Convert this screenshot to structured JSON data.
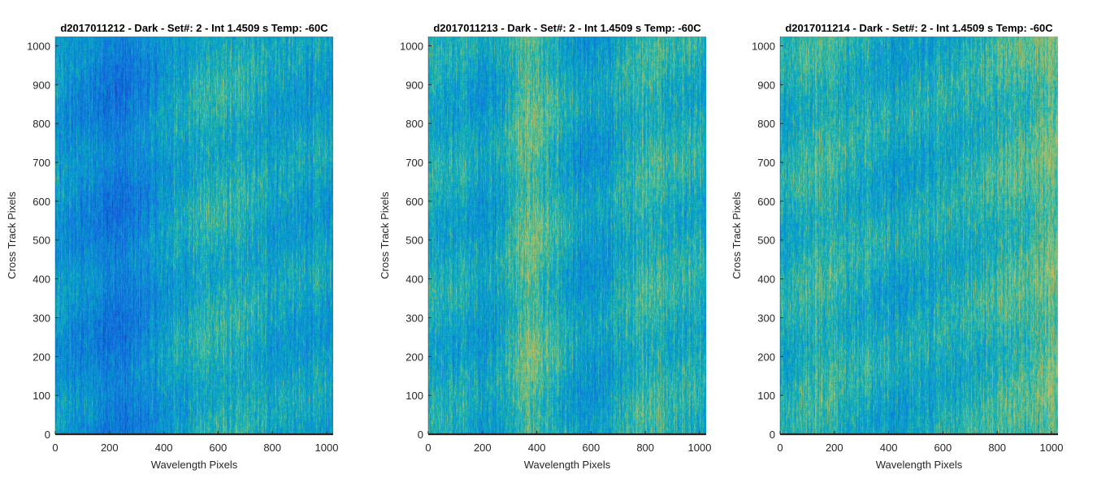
{
  "chart_data": [
    {
      "type": "heatmap",
      "title": "d2017011212 - Dark - Set#: 2 - Int 1.4509 s Temp: -60C",
      "xlabel": "Wavelength Pixels",
      "ylabel": "Cross Track Pixels",
      "xlim": [
        0,
        1024
      ],
      "ylim": [
        0,
        1024
      ],
      "xticks": [
        0,
        200,
        400,
        600,
        800,
        1000
      ],
      "yticks": [
        0,
        100,
        200,
        300,
        400,
        500,
        600,
        700,
        800,
        900,
        1000
      ],
      "colormap": "parula",
      "bands": [
        {
          "x": 0,
          "level": 0.4
        },
        {
          "x": 120,
          "level": 0.35
        },
        {
          "x": 250,
          "level": 0.28
        },
        {
          "x": 330,
          "level": 0.36
        },
        {
          "x": 450,
          "level": 0.46
        },
        {
          "x": 560,
          "level": 0.52
        },
        {
          "x": 680,
          "level": 0.5
        },
        {
          "x": 800,
          "level": 0.46
        },
        {
          "x": 920,
          "level": 0.44
        },
        {
          "x": 1024,
          "level": 0.44
        }
      ]
    },
    {
      "type": "heatmap",
      "title": "d2017011213 - Dark - Set#: 2 - Int 1.4509 s Temp: -60C",
      "xlabel": "Wavelength Pixels",
      "ylabel": "Cross Track Pixels",
      "xlim": [
        0,
        1024
      ],
      "ylim": [
        0,
        1024
      ],
      "xticks": [
        0,
        200,
        400,
        600,
        800,
        1000
      ],
      "yticks": [
        0,
        100,
        200,
        300,
        400,
        500,
        600,
        700,
        800,
        900,
        1000
      ],
      "colormap": "parula",
      "bands": [
        {
          "x": 0,
          "level": 0.5
        },
        {
          "x": 120,
          "level": 0.48
        },
        {
          "x": 230,
          "level": 0.44
        },
        {
          "x": 380,
          "level": 0.64
        },
        {
          "x": 480,
          "level": 0.52
        },
        {
          "x": 580,
          "level": 0.4
        },
        {
          "x": 700,
          "level": 0.48
        },
        {
          "x": 800,
          "level": 0.56
        },
        {
          "x": 920,
          "level": 0.52
        },
        {
          "x": 1024,
          "level": 0.5
        }
      ]
    },
    {
      "type": "heatmap",
      "title": "d2017011214 - Dark - Set#: 2 - Int 1.4509 s Temp: -60C",
      "xlabel": "Wavelength Pixels",
      "ylabel": "Cross Track Pixels",
      "xlim": [
        0,
        1024
      ],
      "ylim": [
        0,
        1024
      ],
      "xticks": [
        0,
        200,
        400,
        600,
        800,
        1000
      ],
      "yticks": [
        0,
        100,
        200,
        300,
        400,
        500,
        600,
        700,
        800,
        900,
        1000
      ],
      "colormap": "parula",
      "bands": [
        {
          "x": 0,
          "level": 0.5
        },
        {
          "x": 150,
          "level": 0.56
        },
        {
          "x": 300,
          "level": 0.5
        },
        {
          "x": 450,
          "level": 0.46
        },
        {
          "x": 600,
          "level": 0.5
        },
        {
          "x": 750,
          "level": 0.54
        },
        {
          "x": 880,
          "level": 0.58
        },
        {
          "x": 1024,
          "level": 0.64
        }
      ]
    }
  ]
}
